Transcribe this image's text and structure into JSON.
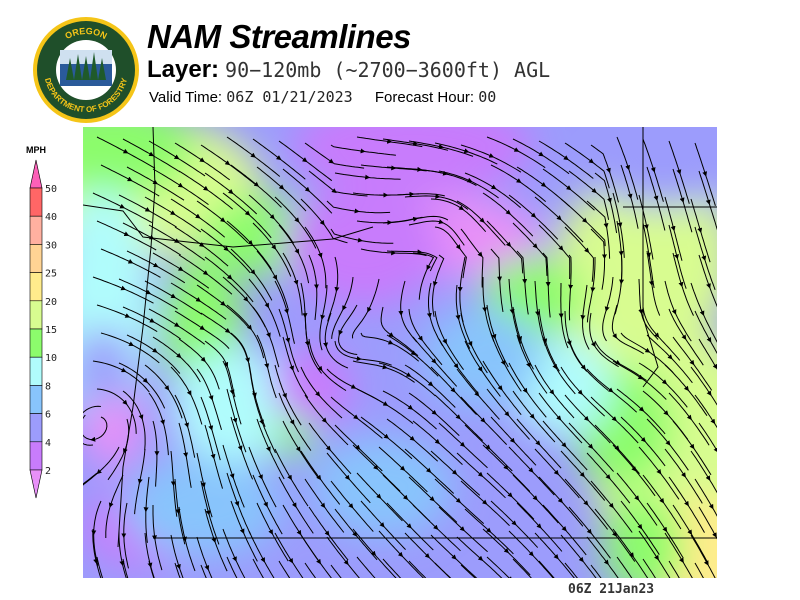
{
  "logo": {
    "text_top": "OREGON",
    "text_bottom": "DEPARTMENT OF FORESTRY"
  },
  "header": {
    "title": "NAM Streamlines",
    "layer_label": "Layer:",
    "layer_value": "90−120mb (~2700−3600ft) AGL",
    "valid_label": "Valid Time:",
    "valid_value": "06Z 01/21/2023",
    "forecast_label": "Forecast Hour:",
    "forecast_value": "00"
  },
  "legend": {
    "unit": "MPH",
    "levels": [
      "50",
      "40",
      "30",
      "25",
      "20",
      "15",
      "10",
      "8",
      "6",
      "4",
      "2"
    ],
    "colors": [
      "#ff6666",
      "#ffb0a0",
      "#ffd494",
      "#ffec8c",
      "#d8fc90",
      "#8cfc6c",
      "#b0fcfc",
      "#88c4fc",
      "#9c9cfc",
      "#c87cfc"
    ],
    "over_color": "#fc60b8",
    "under_color": "#e890f8"
  },
  "map": {
    "field": "wind speed shading with streamlines",
    "stamp": "06Z 21Jan23"
  }
}
